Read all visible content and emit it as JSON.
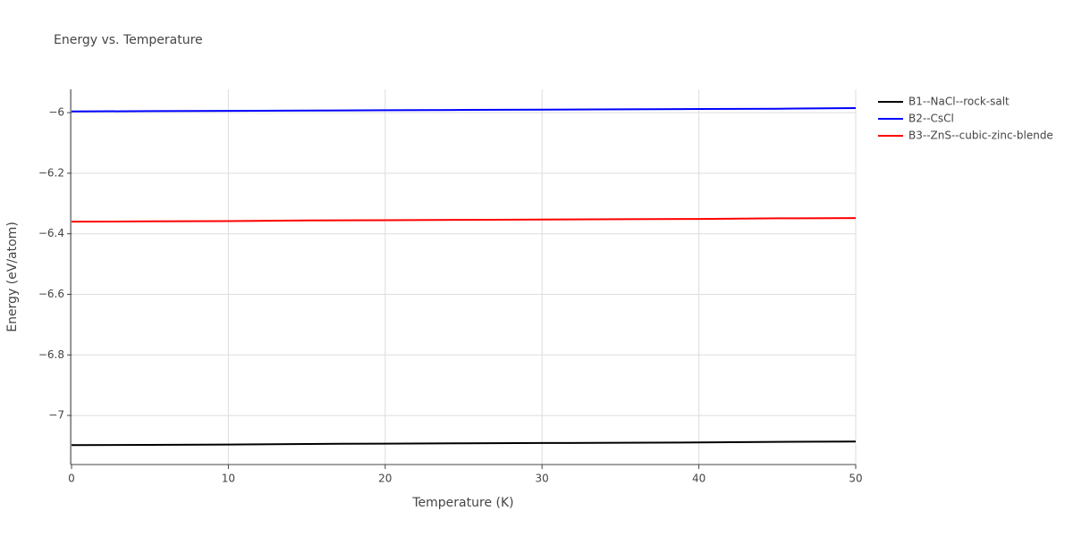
{
  "chart_data": {
    "type": "line",
    "title": "Energy vs. Temperature",
    "x_label": "Temperature (K)",
    "y_label": "Energy (eV/atom)",
    "x": [
      0,
      5,
      10,
      15,
      20,
      25,
      30,
      35,
      40,
      45,
      50
    ],
    "series": [
      {
        "name": "B1--NaCl--rock-salt",
        "color": "#000000",
        "values": [
          -7.098,
          -7.097,
          -7.096,
          -7.094,
          -7.093,
          -7.092,
          -7.091,
          -7.09,
          -7.089,
          -7.087,
          -7.086
        ]
      },
      {
        "name": "B2--CsCl",
        "color": "#0000ff",
        "values": [
          -5.996,
          -5.995,
          -5.994,
          -5.993,
          -5.992,
          -5.991,
          -5.99,
          -5.989,
          -5.988,
          -5.987,
          -5.985
        ]
      },
      {
        "name": "B3--ZnS--cubic-zinc-blende",
        "color": "#ff0000",
        "values": [
          -6.36,
          -6.359,
          -6.358,
          -6.356,
          -6.355,
          -6.354,
          -6.353,
          -6.352,
          -6.351,
          -6.349,
          -6.348
        ]
      }
    ],
    "xlim": [
      0,
      50
    ],
    "xticks": [
      0,
      10,
      20,
      30,
      40,
      50
    ],
    "ylim": [
      -7.162,
      -5.923
    ],
    "yticks": [
      {
        "value": -7,
        "label": "−7"
      },
      {
        "value": -6.8,
        "label": "−6.8"
      },
      {
        "value": -6.6,
        "label": "−6.6"
      },
      {
        "value": -6.4,
        "label": "−6.4"
      },
      {
        "value": -6.2,
        "label": "−6.2"
      },
      {
        "value": -6,
        "label": "−6"
      }
    ],
    "grid": true,
    "legend": "right"
  }
}
